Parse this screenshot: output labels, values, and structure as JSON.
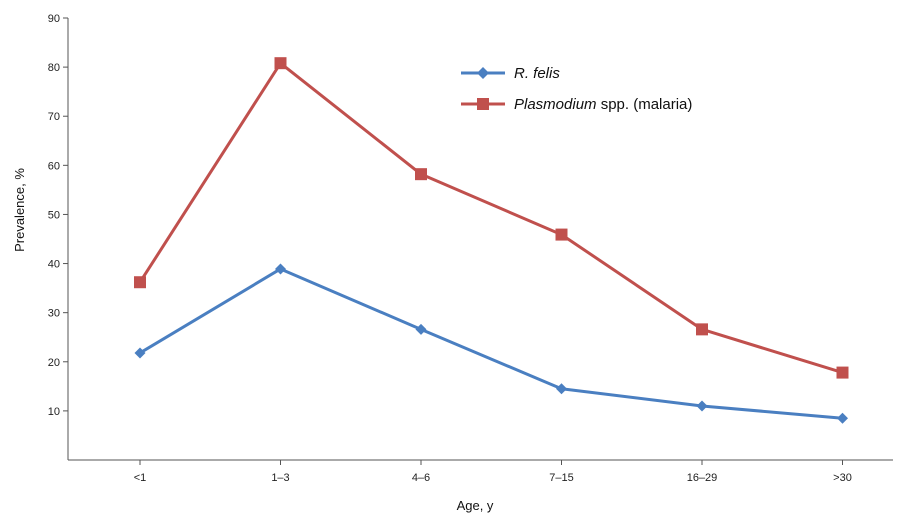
{
  "chart_data": {
    "type": "line",
    "categories": [
      "<1",
      "1–3",
      "4–6",
      "7–15",
      "16–29",
      ">30"
    ],
    "series": [
      {
        "name": "R. felis",
        "legend_italic": "R. felis",
        "legend_rest": "",
        "color": "#4a7fc1",
        "marker": "diamond",
        "values": [
          21.8,
          38.9,
          26.6,
          14.5,
          11.0,
          8.5
        ]
      },
      {
        "name": "Plasmodium spp. (malaria)",
        "legend_italic": "Plasmodium",
        "legend_rest": " spp. (malaria)",
        "color": "#c0504d",
        "marker": "square",
        "values": [
          36.2,
          80.8,
          58.2,
          45.9,
          26.6,
          17.8
        ]
      }
    ],
    "title": "",
    "xlabel": "Age, y",
    "ylabel": "Prevalence, %",
    "ylim": [
      0,
      90
    ],
    "yticks": [
      10,
      20,
      30,
      40,
      50,
      60,
      70,
      80,
      90
    ],
    "grid": false,
    "legend_position": "top-right"
  }
}
